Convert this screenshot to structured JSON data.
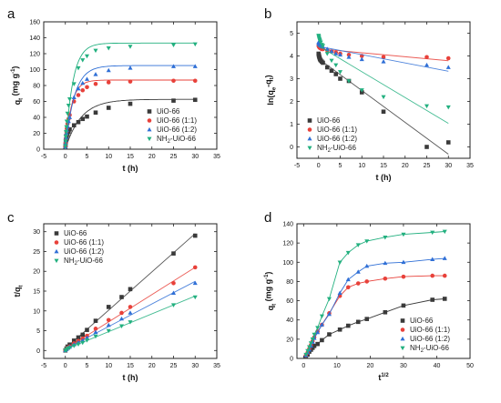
{
  "chart_data": [
    {
      "id": "a",
      "type": "scatter",
      "panel_letter": "a",
      "xlabel": "t (h)",
      "ylabel_main": "q",
      "ylabel_sub": "t",
      "ylabel_rest": " (mg g",
      "ylabel_sup": "-1",
      "ylabel_end": ")",
      "xlim": [
        -5,
        35
      ],
      "ylim": [
        0,
        160
      ],
      "xticks": [
        -5,
        0,
        5,
        10,
        15,
        20,
        25,
        30,
        35
      ],
      "yticks": [
        0,
        20,
        40,
        60,
        80,
        100,
        120,
        140,
        160
      ],
      "fit": "curve",
      "legend_position": "lower-right",
      "series": [
        {
          "name": "UiO-66",
          "marker": "square",
          "color": "#3a3a3a",
          "x": [
            0,
            0.05,
            0.1,
            0.17,
            0.25,
            0.33,
            0.5,
            0.75,
            1,
            2,
            3,
            4,
            5,
            7,
            10,
            15,
            25,
            30
          ],
          "y": [
            2,
            5,
            9,
            12,
            15,
            17,
            19,
            22,
            25,
            30,
            34,
            38,
            41,
            46,
            52,
            57,
            61,
            62
          ]
        },
        {
          "name": "UiO-66 (1:1)",
          "marker": "circle",
          "color": "#e8413a",
          "x": [
            0,
            0.05,
            0.1,
            0.17,
            0.25,
            0.33,
            0.5,
            0.75,
            1,
            2,
            3,
            4,
            5,
            7,
            10,
            15,
            25,
            30
          ],
          "y": [
            3,
            8,
            13,
            18,
            22,
            26,
            32,
            38,
            43,
            60,
            68,
            74,
            78,
            82,
            84,
            85,
            86,
            86
          ]
        },
        {
          "name": "UiO-66 (1:2)",
          "marker": "triangle-up",
          "color": "#2f6fd6",
          "x": [
            0,
            0.05,
            0.1,
            0.17,
            0.25,
            0.33,
            0.5,
            0.75,
            1,
            2,
            3,
            4,
            5,
            7,
            10,
            15,
            25,
            30
          ],
          "y": [
            3,
            7,
            11,
            15,
            20,
            24,
            29,
            35,
            40,
            65,
            76,
            83,
            88,
            94,
            99,
            102,
            104,
            104
          ]
        },
        {
          "name": "NH2-UiO-66",
          "marker": "triangle-down",
          "color": "#22b07f",
          "x": [
            0,
            0.05,
            0.1,
            0.17,
            0.25,
            0.33,
            0.5,
            0.75,
            1,
            2,
            3,
            4,
            5,
            7,
            10,
            15,
            25,
            30
          ],
          "y": [
            4,
            10,
            16,
            22,
            28,
            35,
            45,
            55,
            63,
            82,
            102,
            112,
            117,
            124,
            127,
            129,
            131,
            132
          ]
        }
      ]
    },
    {
      "id": "b",
      "type": "scatter",
      "panel_letter": "b",
      "xlabel": "t (h)",
      "ylabel_main": "ln(q",
      "ylabel_sub": "e",
      "ylabel_rest": "-q",
      "ylabel_sub2": "t",
      "ylabel_end": ")",
      "xlim": [
        -5,
        35
      ],
      "ylim": [
        -0.5,
        5.5
      ],
      "xticks": [
        -5,
        0,
        5,
        10,
        15,
        20,
        25,
        30,
        35
      ],
      "yticks": [
        0,
        1,
        2,
        3,
        4,
        5
      ],
      "fit": "linear",
      "legend_position": "lower-left",
      "series": [
        {
          "name": "UiO-66",
          "marker": "square",
          "color": "#3a3a3a",
          "x": [
            0,
            0.05,
            0.1,
            0.17,
            0.25,
            0.33,
            0.5,
            0.75,
            1,
            2,
            3,
            4,
            5,
            7,
            10,
            15,
            25,
            30
          ],
          "y": [
            4.1,
            4.05,
            4.0,
            3.95,
            3.9,
            3.85,
            3.8,
            3.75,
            3.7,
            3.5,
            3.35,
            3.2,
            3.0,
            2.9,
            2.4,
            1.55,
            0.0,
            0.2
          ]
        },
        {
          "name": "UiO-66 (1:1)",
          "marker": "circle",
          "color": "#e8413a",
          "x": [
            0,
            0.05,
            0.1,
            0.17,
            0.25,
            0.33,
            0.5,
            0.75,
            1,
            2,
            3,
            4,
            5,
            7,
            10,
            15,
            25,
            30
          ],
          "y": [
            4.45,
            4.42,
            4.4,
            4.38,
            4.36,
            4.35,
            4.33,
            4.3,
            4.3,
            4.25,
            4.2,
            4.15,
            4.1,
            4.05,
            4.0,
            3.95,
            3.95,
            3.9
          ]
        },
        {
          "name": "UiO-66 (1:2)",
          "marker": "triangle-up",
          "color": "#2f6fd6",
          "x": [
            0,
            0.05,
            0.1,
            0.17,
            0.25,
            0.33,
            0.5,
            0.75,
            1,
            2,
            3,
            4,
            5,
            7,
            10,
            15,
            25,
            30
          ],
          "y": [
            4.6,
            4.58,
            4.55,
            4.52,
            4.5,
            4.48,
            4.45,
            4.42,
            4.4,
            4.3,
            4.2,
            4.1,
            4.05,
            3.95,
            3.85,
            3.75,
            3.6,
            3.5
          ]
        },
        {
          "name": "NH2-UiO-66",
          "marker": "triangle-down",
          "color": "#22b07f",
          "x": [
            0,
            0.05,
            0.1,
            0.17,
            0.25,
            0.33,
            0.5,
            0.75,
            1,
            2,
            3,
            4,
            5,
            7,
            10,
            15,
            25,
            30
          ],
          "y": [
            4.9,
            4.85,
            4.8,
            4.75,
            4.7,
            4.65,
            4.6,
            4.5,
            4.45,
            4.1,
            3.8,
            3.6,
            3.3,
            2.9,
            2.5,
            2.2,
            1.8,
            1.75
          ]
        }
      ]
    },
    {
      "id": "c",
      "type": "scatter",
      "panel_letter": "c",
      "xlabel": "t (h)",
      "ylabel_main": "t/q",
      "ylabel_sub": "t",
      "ylabel_rest": "",
      "ylabel_end": "",
      "xlim": [
        -5,
        35
      ],
      "ylim": [
        -2,
        32
      ],
      "xticks": [
        -5,
        0,
        5,
        10,
        15,
        20,
        25,
        30,
        35
      ],
      "yticks": [
        0,
        5,
        10,
        15,
        20,
        25,
        30
      ],
      "fit": "linear",
      "legend_position": "upper-left",
      "series": [
        {
          "name": "UiO-66",
          "marker": "square",
          "color": "#3a3a3a",
          "x": [
            0,
            0.25,
            0.5,
            1,
            2,
            3,
            4,
            5,
            7,
            10,
            13,
            15,
            25,
            30
          ],
          "y": [
            0.0,
            0.5,
            1.0,
            1.5,
            2.5,
            3.3,
            4.0,
            5.2,
            7.5,
            11.0,
            13.5,
            15.5,
            24.5,
            29.0
          ]
        },
        {
          "name": "UiO-66 (1:1)",
          "marker": "circle",
          "color": "#e8413a",
          "x": [
            0,
            0.25,
            0.5,
            1,
            2,
            3,
            4,
            5,
            7,
            10,
            13,
            15,
            25,
            30
          ],
          "y": [
            0.0,
            0.3,
            0.7,
            1.0,
            1.8,
            2.4,
            3.0,
            3.7,
            5.5,
            7.7,
            9.5,
            11.0,
            17.0,
            21.0
          ]
        },
        {
          "name": "UiO-66 (1:2)",
          "marker": "triangle-up",
          "color": "#2f6fd6",
          "x": [
            0,
            0.25,
            0.5,
            1,
            2,
            3,
            4,
            5,
            7,
            10,
            13,
            15,
            25,
            30
          ],
          "y": [
            0.0,
            0.3,
            0.6,
            0.9,
            1.5,
            2.0,
            2.5,
            3.2,
            4.6,
            6.4,
            8.0,
            9.5,
            14.5,
            17.0
          ]
        },
        {
          "name": "NH2-UiO-66",
          "marker": "triangle-down",
          "color": "#22b07f",
          "x": [
            0,
            0.25,
            0.5,
            1,
            2,
            3,
            4,
            5,
            7,
            10,
            13,
            15,
            25,
            30
          ],
          "y": [
            0.0,
            0.2,
            0.5,
            0.7,
            1.2,
            1.6,
            2.0,
            2.6,
            3.6,
            5.0,
            6.2,
            7.2,
            11.5,
            13.5
          ]
        }
      ]
    },
    {
      "id": "d",
      "type": "line",
      "panel_letter": "d",
      "xlabel_main": "t",
      "xlabel_sup": "1/2",
      "ylabel_main": "q",
      "ylabel_sub": "t",
      "ylabel_rest": " (mg g",
      "ylabel_sup": "-1",
      "ylabel_end": ")",
      "xlim": [
        -2,
        50
      ],
      "ylim": [
        0,
        140
      ],
      "xticks": [
        0,
        10,
        20,
        30,
        40,
        50
      ],
      "yticks": [
        0,
        20,
        40,
        60,
        80,
        100,
        120,
        140
      ],
      "fit": "none",
      "legend_position": "lower-right",
      "series": [
        {
          "name": "UiO-66",
          "marker": "square",
          "color": "#3a3a3a",
          "x": [
            0.7,
            1.2,
            1.7,
            2.2,
            2.7,
            3.2,
            4.2,
            5.5,
            7.7,
            10.9,
            13.4,
            16.4,
            19.0,
            24.5,
            30.0,
            38.7,
            42.4
          ],
          "y": [
            2,
            4,
            7,
            9,
            11,
            13,
            15,
            19,
            25,
            30,
            34,
            38,
            41,
            48,
            55,
            61,
            62
          ]
        },
        {
          "name": "UiO-66 (1:1)",
          "marker": "circle",
          "color": "#e8413a",
          "x": [
            0.7,
            1.2,
            1.7,
            2.2,
            2.7,
            3.2,
            4.2,
            5.5,
            7.7,
            10.9,
            13.4,
            16.4,
            19.0,
            24.5,
            30.0,
            38.7,
            42.4
          ],
          "y": [
            3,
            6,
            10,
            14,
            18,
            22,
            28,
            35,
            47,
            65,
            74,
            78,
            80,
            83,
            85,
            86,
            86
          ]
        },
        {
          "name": "UiO-66 (1:2)",
          "marker": "triangle-up",
          "color": "#2f6fd6",
          "x": [
            0.7,
            1.2,
            1.7,
            2.2,
            2.7,
            3.2,
            4.2,
            5.5,
            7.7,
            10.9,
            13.4,
            16.4,
            19.0,
            24.5,
            30.0,
            38.7,
            42.4
          ],
          "y": [
            3,
            6,
            9,
            13,
            17,
            21,
            27,
            35,
            46,
            68,
            82,
            90,
            96,
            99,
            100,
            103,
            104
          ]
        },
        {
          "name": "NH2-UiO-66",
          "marker": "triangle-down",
          "color": "#22b07f",
          "x": [
            0.7,
            1.2,
            1.7,
            2.2,
            2.7,
            3.2,
            4.2,
            5.5,
            7.7,
            10.9,
            13.4,
            16.4,
            19.0,
            24.5,
            30.0,
            38.7,
            42.4
          ],
          "y": [
            4,
            8,
            12,
            16,
            20,
            25,
            32,
            44,
            62,
            100,
            110,
            118,
            122,
            126,
            129,
            131,
            132
          ]
        }
      ]
    }
  ]
}
